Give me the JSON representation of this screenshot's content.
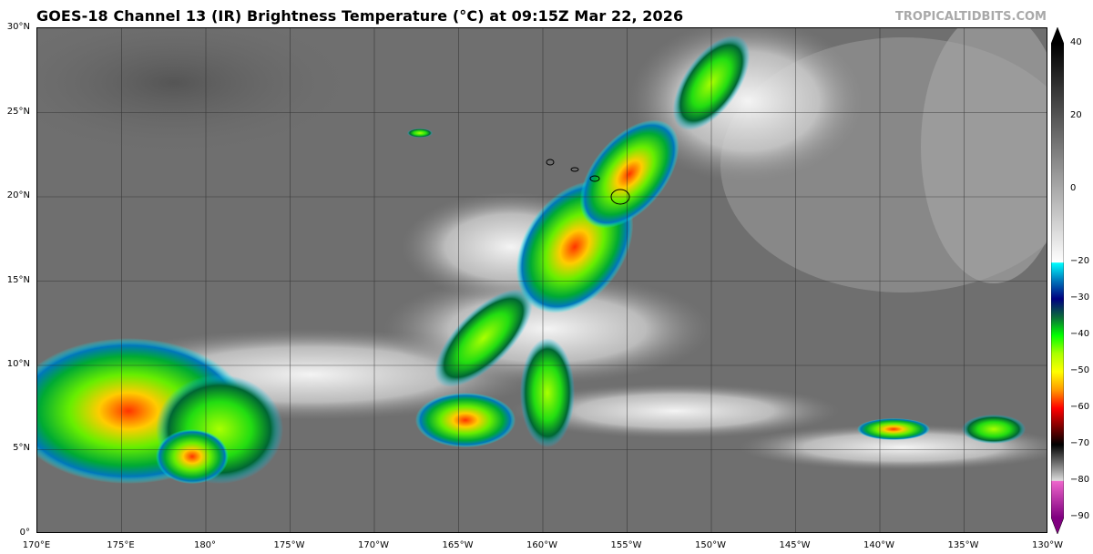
{
  "title": "GOES-18 Channel 13 (IR) Brightness Temperature (°C) at 09:15Z Mar 22, 2026",
  "watermark": "TROPICALTIDBITS.COM",
  "map": {
    "lat_ticks": [
      "30°N",
      "25°N",
      "20°N",
      "15°N",
      "10°N",
      "5°N",
      "0°"
    ],
    "lon_ticks": [
      "170°E",
      "175°E",
      "180°",
      "175°W",
      "170°W",
      "165°W",
      "160°W",
      "155°W",
      "150°W",
      "145°W",
      "140°W",
      "135°W",
      "130°W"
    ],
    "background_color": "#6e6e6e"
  },
  "colorbar": {
    "ticks": [
      "40",
      "20",
      "0",
      "−20",
      "−30",
      "−40",
      "−50",
      "−60",
      "−70",
      "−80",
      "−90"
    ],
    "range": [
      -90,
      40
    ],
    "stops": [
      {
        "value": 40,
        "color": "#000000"
      },
      {
        "value": -20,
        "color": "#ffffff"
      },
      {
        "value": -20.1,
        "color": "#00ffff"
      },
      {
        "value": -25,
        "color": "#0077bb"
      },
      {
        "value": -30,
        "color": "#000080"
      },
      {
        "value": -35,
        "color": "#0a6a3a"
      },
      {
        "value": -40,
        "color": "#00ff00"
      },
      {
        "value": -45,
        "color": "#aaff00"
      },
      {
        "value": -50,
        "color": "#ffff00"
      },
      {
        "value": -55,
        "color": "#ff9900"
      },
      {
        "value": -60,
        "color": "#ff0000"
      },
      {
        "value": -65,
        "color": "#800000"
      },
      {
        "value": -70,
        "color": "#000000"
      },
      {
        "value": -77,
        "color": "#999999"
      },
      {
        "value": -79.9,
        "color": "#dddddd"
      },
      {
        "value": -80,
        "color": "#ee66cc"
      },
      {
        "value": -90,
        "color": "#800080"
      }
    ]
  }
}
